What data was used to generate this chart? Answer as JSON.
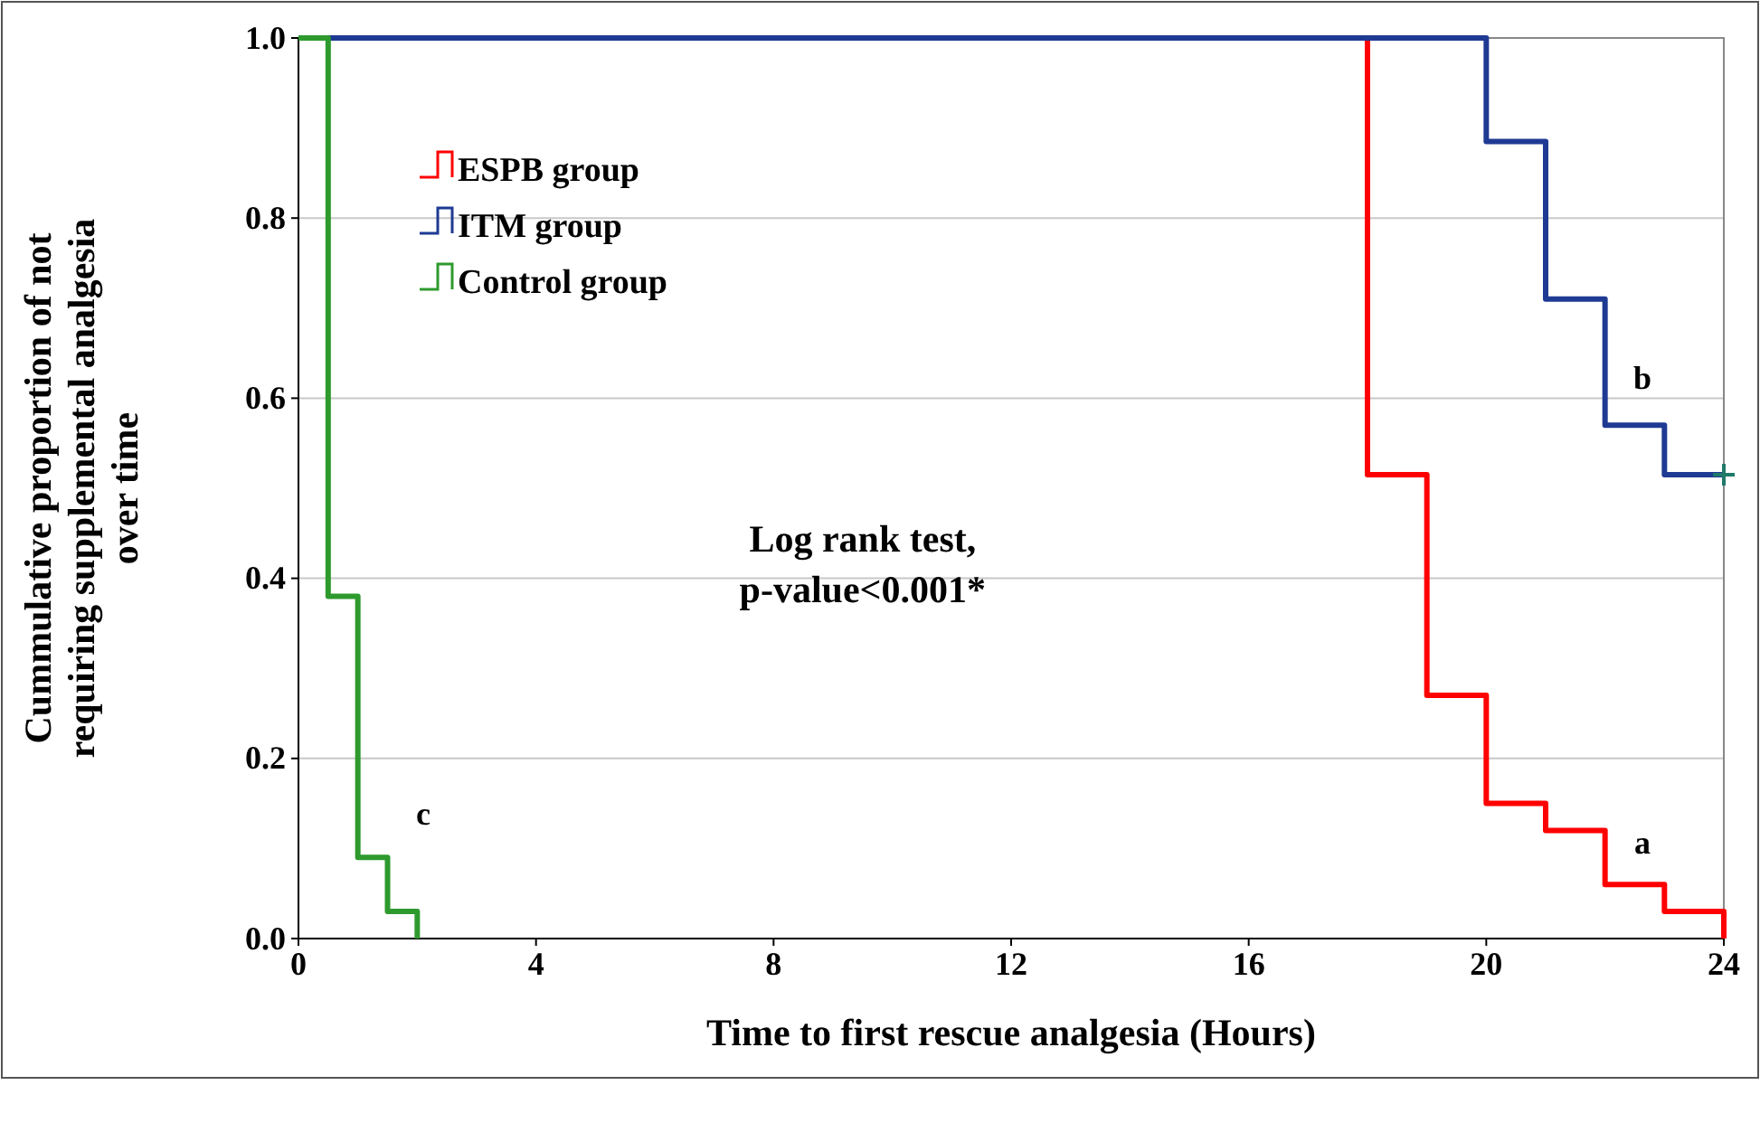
{
  "chart_data": {
    "type": "step",
    "xlabel": "Time to first rescue analgesia (Hours)",
    "ylabel": "Cummulative proportion of not requiring supplemental analgesia over time",
    "xlim": [
      0,
      24
    ],
    "xticks": [
      0,
      4,
      8,
      12,
      16,
      20,
      24
    ],
    "ylim": [
      0,
      1
    ],
    "yticks": [
      {
        "value": 0,
        "label": "0.0"
      },
      {
        "value": 0.2,
        "label": "0.2"
      },
      {
        "value": 0.4,
        "label": "0.4"
      },
      {
        "value": 0.6,
        "label": "0.6"
      },
      {
        "value": 0.8,
        "label": "0.8"
      },
      {
        "value": 1,
        "label": "1.0"
      }
    ],
    "grid": "y",
    "legend": "top left",
    "line_style": "solid",
    "series": [
      {
        "name": "ESPB group",
        "color": "#ff0000",
        "x": [
          0,
          18,
          19,
          20,
          21,
          22,
          23,
          24
        ],
        "values": [
          1,
          0.515,
          0.27,
          0.15,
          0.12,
          0.06,
          0.03,
          0
        ]
      },
      {
        "name": "ITM group",
        "color": "#1f3a93",
        "x": [
          0,
          20,
          21,
          22,
          23,
          24
        ],
        "values": [
          1,
          0.885,
          0.71,
          0.57,
          0.515,
          0.515
        ]
      },
      {
        "name": "Control group",
        "color": "#2e9a2e",
        "x": [
          0,
          0.5,
          1,
          1.5,
          2
        ],
        "values": [
          1,
          0.38,
          0.09,
          0.03,
          0
        ]
      },
      {
        "type": "scatter",
        "marker": "cross",
        "color": "#1f7a6a",
        "x": [
          24
        ],
        "values": [
          0.515
        ]
      }
    ],
    "annotations": [
      "a",
      "b",
      "c",
      "Log rank test,\np-value<0.001*"
    ]
  }
}
